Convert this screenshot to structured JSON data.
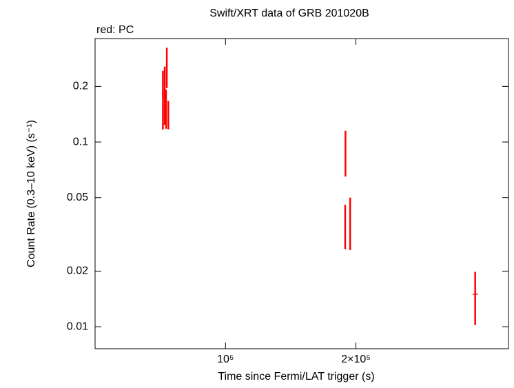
{
  "chart_data": {
    "type": "scatter",
    "title": "Swift/XRT data of GRB 201020B",
    "annotation": "red: PC",
    "x_label": "Time since Fermi/LAT trigger (s)",
    "y_label": "Count Rate (0.3–10 keV) (s⁻¹)",
    "xscale": "log",
    "yscale": "log",
    "xlim": [
      50000,
      450000
    ],
    "ylim": [
      0.0076,
      0.363
    ],
    "xticks": [
      {
        "value": 100000,
        "label": "10⁵"
      },
      {
        "value": 200000,
        "label": "2×10⁵"
      }
    ],
    "yticks": [
      0.01,
      0.02,
      0.05,
      0.1,
      0.2
    ],
    "series": [
      {
        "name": "PC",
        "color": "#ff0000",
        "x": [
          71700,
          72400,
          73200,
          72900,
          73800,
          189200,
          188900,
          194000,
          377000
        ],
        "x_err": [
          300,
          300,
          300,
          300,
          300,
          500,
          500,
          500,
          5000
        ],
        "values": [
          0.18,
          0.19,
          0.26,
          0.155,
          0.142,
          0.09,
          0.036,
          0.038,
          0.015
        ],
        "errors": [
          0.063,
          0.066,
          0.064,
          0.037,
          0.025,
          0.025,
          0.0097,
          0.012,
          0.0048
        ]
      }
    ]
  }
}
